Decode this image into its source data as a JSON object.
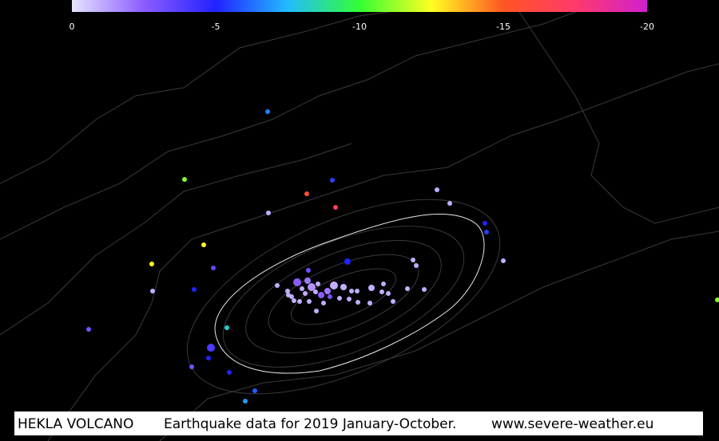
{
  "chart_data": {
    "type": "scatter",
    "colorbar": {
      "lim": [
        0,
        -20
      ],
      "ticks": [
        0,
        -5,
        -10,
        -15,
        -20
      ],
      "colors": [
        "#e4e4ff",
        "#8c5cff",
        "#2222ff",
        "#22bbff",
        "#33ff33",
        "#ffff22",
        "#ff5522",
        "#ff3a6a",
        "#d020d0"
      ]
    },
    "annotations": [
      "HEKLA VOLCANO",
      "Earthquake data for 2019 January-October.",
      "www.severe-weather.eu"
    ],
    "depths": [
      -6.5,
      -11,
      -5.5,
      -15.5,
      -17,
      -1,
      -1,
      -1,
      -5,
      -5.5,
      -12.5,
      -12.5,
      -3.5,
      -5,
      -3,
      -1,
      -1,
      -1,
      -1,
      -5,
      -3,
      -8,
      -4,
      -5,
      -3,
      -5,
      -6,
      -7,
      -11,
      -1,
      -1,
      -1,
      -2.5,
      -1,
      -2,
      -1.5,
      -1,
      -2.5,
      -2,
      -1,
      -1,
      -1,
      -1,
      -1,
      -1,
      -1,
      -1,
      -1,
      -1,
      -1,
      -1,
      -1,
      -1,
      -1,
      -1,
      -1,
      -1,
      -1,
      -1,
      -1,
      -1,
      -1,
      -3
    ]
  }
}
